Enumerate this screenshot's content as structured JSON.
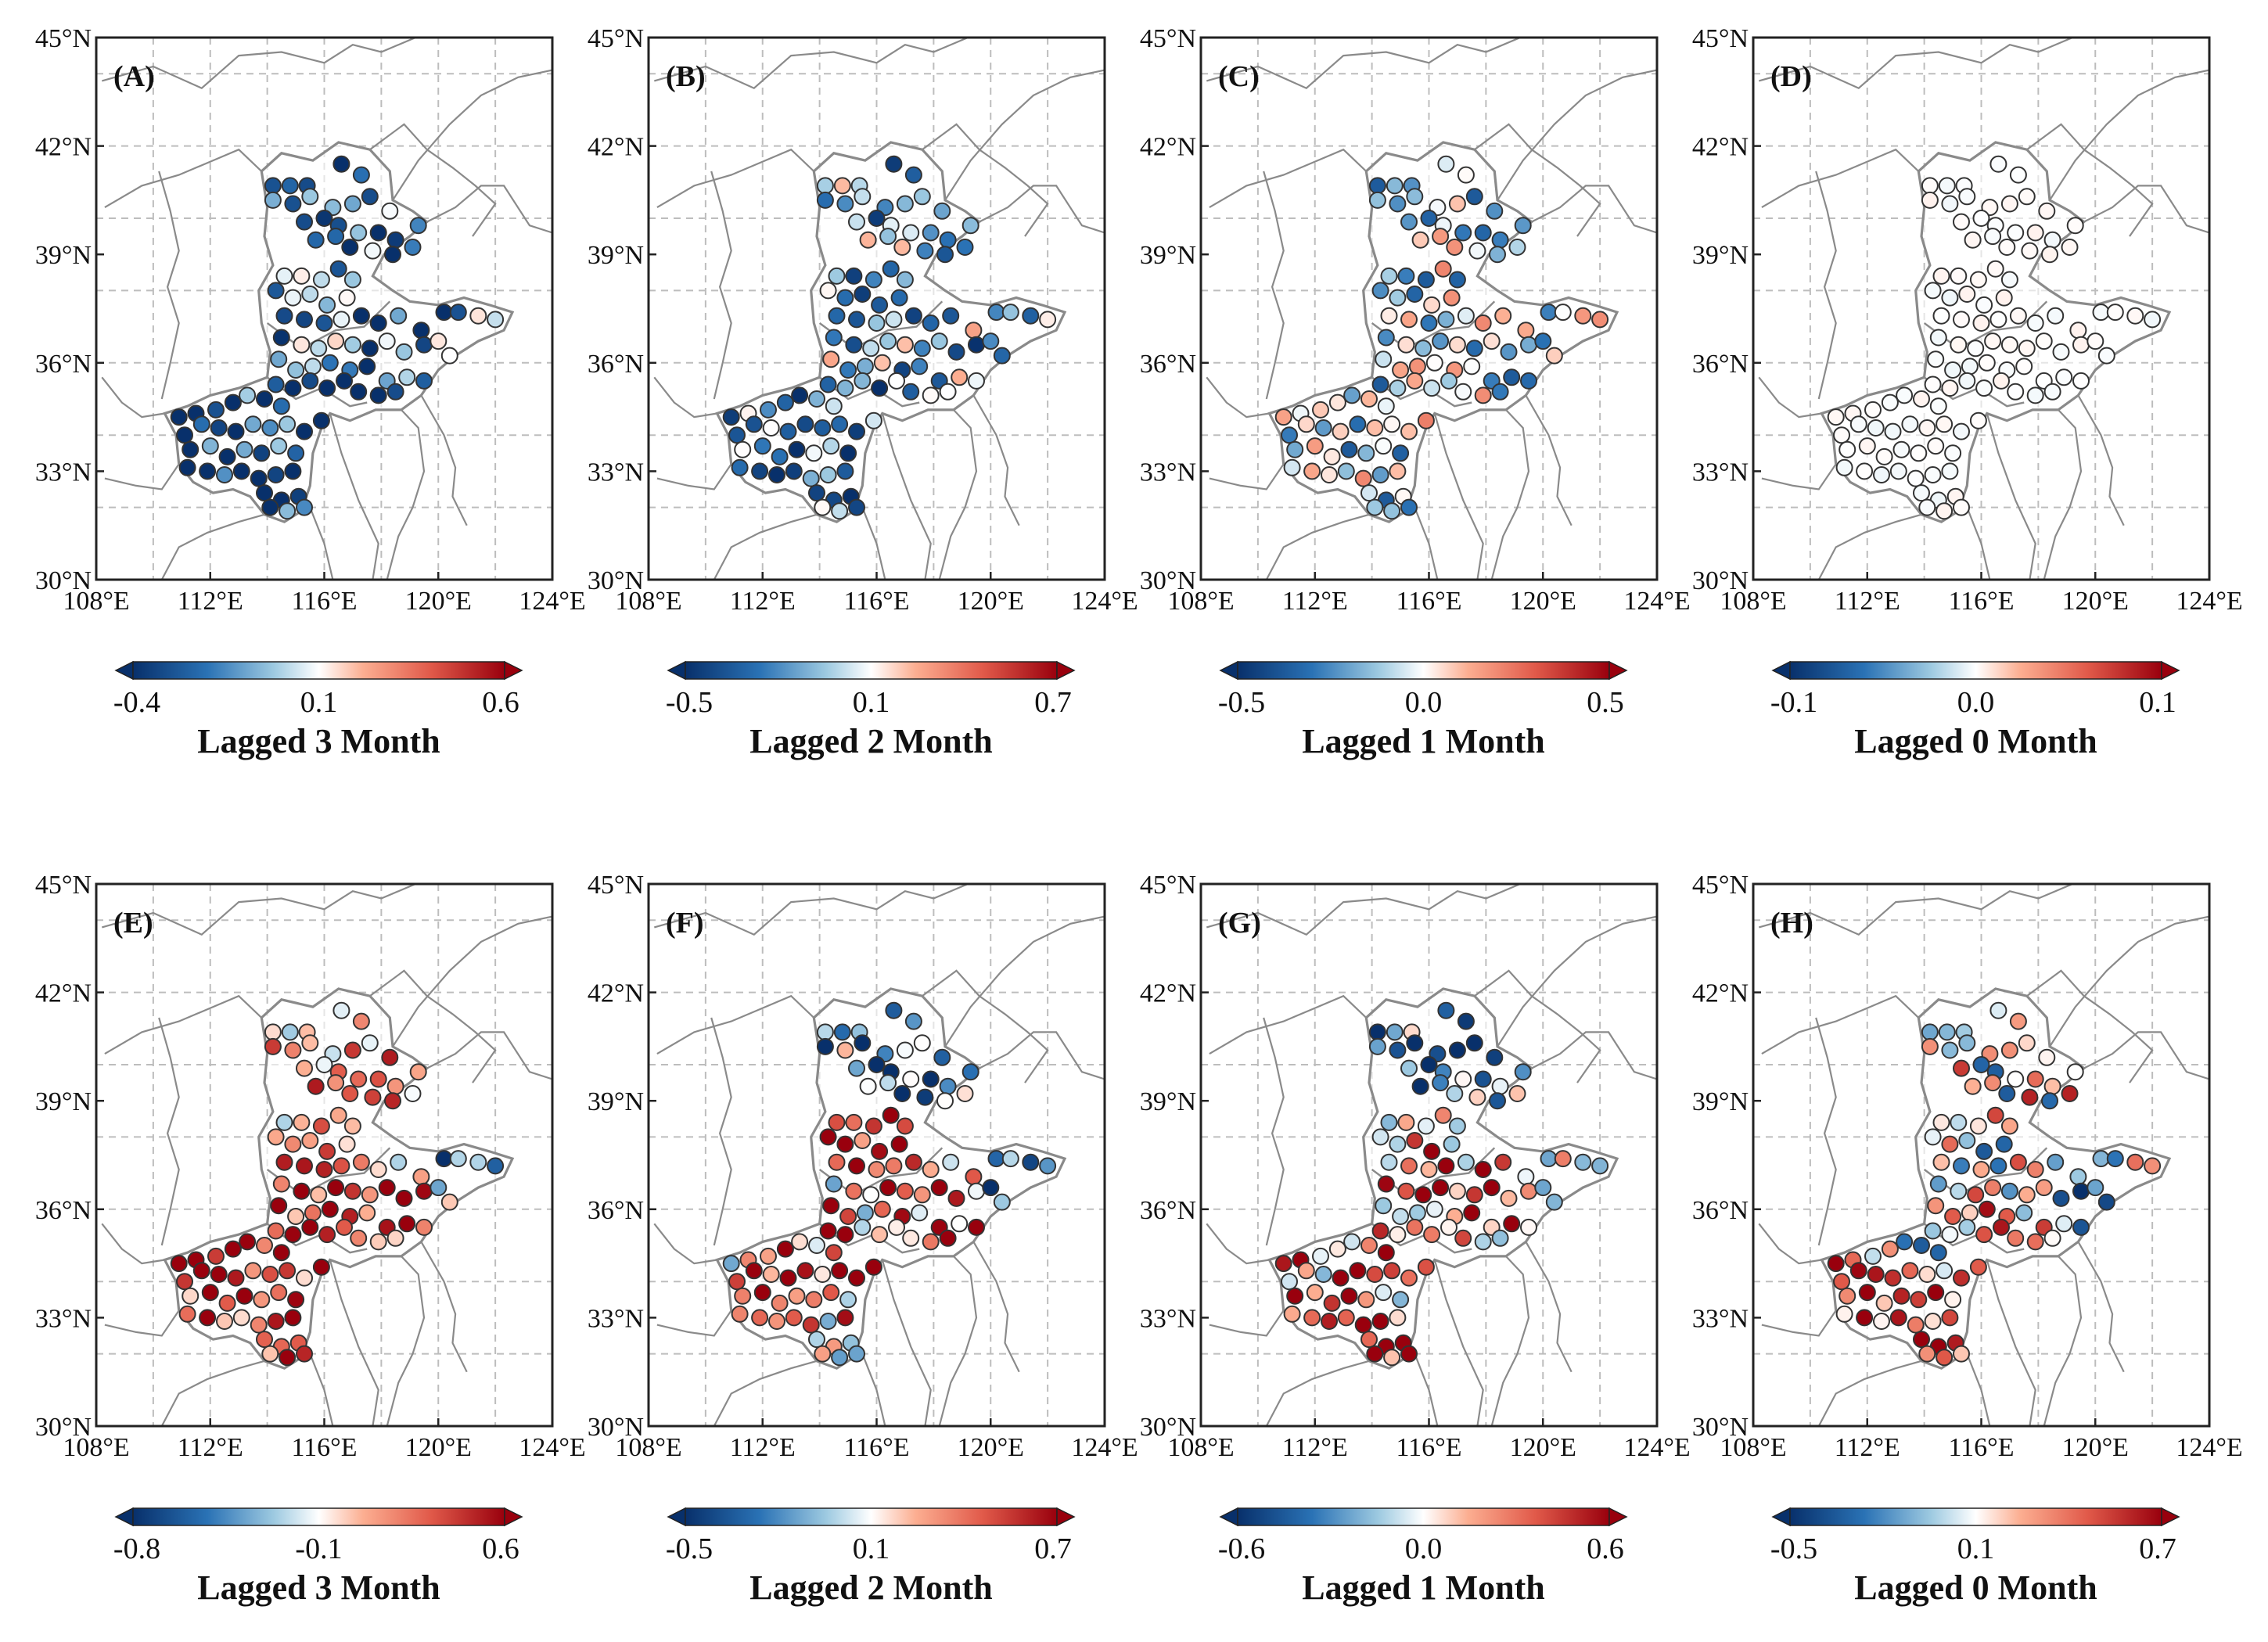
{
  "figure": {
    "lat_ticks": [
      "45°N",
      "42°N",
      "39°N",
      "36°N",
      "33°N",
      "30°N"
    ],
    "lon_ticks": [
      "108°E",
      "112°E",
      "116°E",
      "120°E",
      "124°E"
    ]
  },
  "colors": {
    "dark_blue": "#08306b",
    "blue": "#2a72b5",
    "light_blue": "#9ecae1",
    "white": "#ffffff",
    "light_red": "#fcae91",
    "red": "#e15a4a",
    "dark_red": "#99000d",
    "frame": "#222222",
    "grid": "#bdbdbd",
    "border": "#8a8a8a"
  },
  "panels": [
    {
      "label": "(A)",
      "colorbar": {
        "min": "-0.4",
        "mid": "0.1",
        "max": "0.6",
        "title": "Lagged 3 Month"
      },
      "bias": -0.55,
      "spread": 0.7
    },
    {
      "label": "(B)",
      "colorbar": {
        "min": "-0.5",
        "mid": "0.1",
        "max": "0.7",
        "title": "Lagged 2 Month"
      },
      "bias": -0.35,
      "spread": 0.65
    },
    {
      "label": "(C)",
      "colorbar": {
        "min": "-0.5",
        "mid": "0.0",
        "max": "0.5",
        "title": "Lagged 1 Month"
      },
      "bias": -0.15,
      "spread": 0.6
    },
    {
      "label": "(D)",
      "colorbar": {
        "min": "-0.1",
        "mid": "0.0",
        "max": "0.1",
        "title": "Lagged 0 Month"
      },
      "bias": 0.0,
      "spread": 0.08
    },
    {
      "label": "(E)",
      "colorbar": {
        "min": "-0.8",
        "mid": "-0.1",
        "max": "0.6",
        "title": "Lagged 3 Month"
      },
      "bias": 0.45,
      "spread": 0.6
    },
    {
      "label": "(F)",
      "colorbar": {
        "min": "-0.5",
        "mid": "0.1",
        "max": "0.7",
        "title": "Lagged 2 Month"
      },
      "bias": 0.05,
      "spread": 0.85
    },
    {
      "label": "(G)",
      "colorbar": {
        "min": "-0.6",
        "mid": "0.0",
        "max": "0.6",
        "title": "Lagged 1 Month"
      },
      "bias": 0.15,
      "spread": 0.85
    },
    {
      "label": "(H)",
      "colorbar": {
        "min": "-0.5",
        "mid": "0.1",
        "max": "0.7",
        "title": "Lagged 0 Month"
      },
      "bias": 0.1,
      "spread": 0.85
    }
  ],
  "stations": [
    [
      114.2,
      40.9
    ],
    [
      114.8,
      40.9
    ],
    [
      115.4,
      40.9
    ],
    [
      116.6,
      41.5
    ],
    [
      117.3,
      41.2
    ],
    [
      114.2,
      40.5
    ],
    [
      114.9,
      40.4
    ],
    [
      115.5,
      40.6
    ],
    [
      116.3,
      40.3
    ],
    [
      117.0,
      40.4
    ],
    [
      117.6,
      40.6
    ],
    [
      118.3,
      40.2
    ],
    [
      115.3,
      39.9
    ],
    [
      116.0,
      40.0
    ],
    [
      116.5,
      39.8
    ],
    [
      117.2,
      39.6
    ],
    [
      117.9,
      39.6
    ],
    [
      118.5,
      39.4
    ],
    [
      119.3,
      39.8
    ],
    [
      115.7,
      39.4
    ],
    [
      116.4,
      39.5
    ],
    [
      116.9,
      39.2
    ],
    [
      117.7,
      39.1
    ],
    [
      118.4,
      39.0
    ],
    [
      119.1,
      39.2
    ],
    [
      114.6,
      38.4
    ],
    [
      115.2,
      38.4
    ],
    [
      115.9,
      38.3
    ],
    [
      116.5,
      38.6
    ],
    [
      117.0,
      38.3
    ],
    [
      114.3,
      38.0
    ],
    [
      114.9,
      37.8
    ],
    [
      115.5,
      37.9
    ],
    [
      116.1,
      37.6
    ],
    [
      116.8,
      37.8
    ],
    [
      114.6,
      37.3
    ],
    [
      115.3,
      37.2
    ],
    [
      116.0,
      37.1
    ],
    [
      116.6,
      37.2
    ],
    [
      117.3,
      37.3
    ],
    [
      117.9,
      37.1
    ],
    [
      118.6,
      37.3
    ],
    [
      119.4,
      36.9
    ],
    [
      120.2,
      37.4
    ],
    [
      120.7,
      37.4
    ],
    [
      121.4,
      37.3
    ],
    [
      122.0,
      37.2
    ],
    [
      114.5,
      36.7
    ],
    [
      115.2,
      36.5
    ],
    [
      115.8,
      36.4
    ],
    [
      116.4,
      36.6
    ],
    [
      117.0,
      36.5
    ],
    [
      117.6,
      36.4
    ],
    [
      118.2,
      36.6
    ],
    [
      118.8,
      36.3
    ],
    [
      119.5,
      36.5
    ],
    [
      120.0,
      36.6
    ],
    [
      120.4,
      36.2
    ],
    [
      114.4,
      36.1
    ],
    [
      115.0,
      35.8
    ],
    [
      115.6,
      35.9
    ],
    [
      116.2,
      36.0
    ],
    [
      116.9,
      35.8
    ],
    [
      117.5,
      35.9
    ],
    [
      118.2,
      35.5
    ],
    [
      118.9,
      35.6
    ],
    [
      119.5,
      35.5
    ],
    [
      114.3,
      35.4
    ],
    [
      114.9,
      35.3
    ],
    [
      115.5,
      35.5
    ],
    [
      116.1,
      35.3
    ],
    [
      116.7,
      35.5
    ],
    [
      117.2,
      35.2
    ],
    [
      117.9,
      35.1
    ],
    [
      118.5,
      35.2
    ],
    [
      110.9,
      34.5
    ],
    [
      111.5,
      34.6
    ],
    [
      112.2,
      34.7
    ],
    [
      112.8,
      34.9
    ],
    [
      113.3,
      35.1
    ],
    [
      113.9,
      35.0
    ],
    [
      114.5,
      34.8
    ],
    [
      111.1,
      34.0
    ],
    [
      111.7,
      34.3
    ],
    [
      112.3,
      34.2
    ],
    [
      112.9,
      34.1
    ],
    [
      113.5,
      34.3
    ],
    [
      114.1,
      34.2
    ],
    [
      114.7,
      34.3
    ],
    [
      115.3,
      34.1
    ],
    [
      115.9,
      34.4
    ],
    [
      111.3,
      33.6
    ],
    [
      112.0,
      33.7
    ],
    [
      112.6,
      33.4
    ],
    [
      113.2,
      33.6
    ],
    [
      113.8,
      33.5
    ],
    [
      114.4,
      33.7
    ],
    [
      115.0,
      33.5
    ],
    [
      111.2,
      33.1
    ],
    [
      111.9,
      33.0
    ],
    [
      112.5,
      32.9
    ],
    [
      113.1,
      33.0
    ],
    [
      113.7,
      32.8
    ],
    [
      114.3,
      32.9
    ],
    [
      114.9,
      33.0
    ],
    [
      113.9,
      32.4
    ],
    [
      114.5,
      32.2
    ],
    [
      115.1,
      32.3
    ],
    [
      114.1,
      32.0
    ],
    [
      114.7,
      31.9
    ],
    [
      115.3,
      32.0
    ]
  ]
}
